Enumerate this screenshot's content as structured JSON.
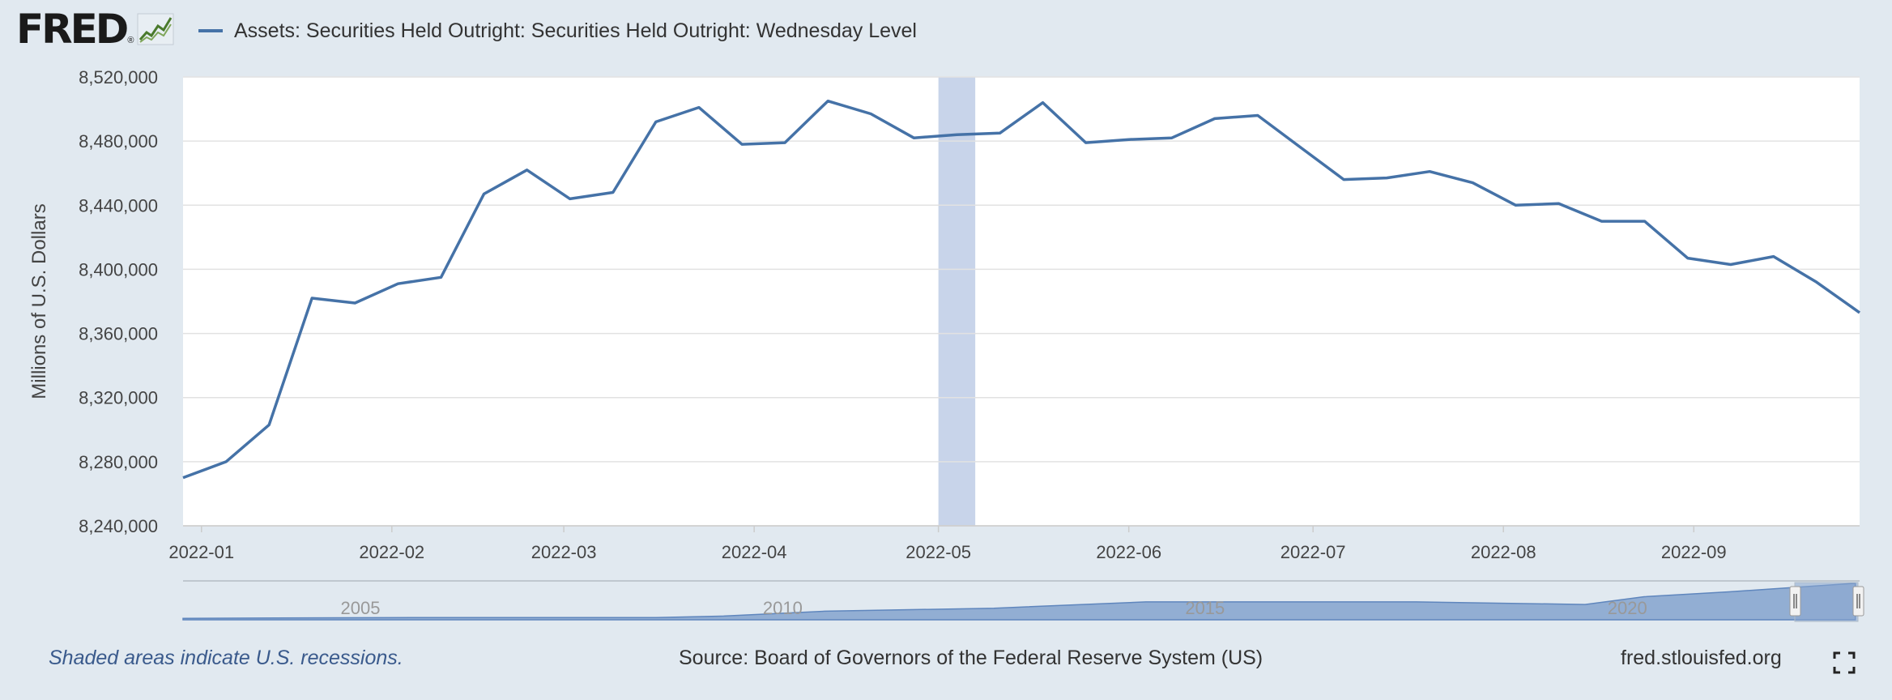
{
  "header": {
    "logo_text": "FRED",
    "logo_mark": "®",
    "series_title": "Assets: Securities Held Outright: Securities Held Outright: Wednesday Level"
  },
  "footer": {
    "recession_note": "Shaded areas indicate U.S. recessions.",
    "source": "Source: Board of Governors of the Federal Reserve System (US)",
    "site": "fred.stlouisfed.org"
  },
  "colors": {
    "series": "#4572a7",
    "shade": "#c8d4ea",
    "background": "#e1e9f0",
    "plot": "#ffffff",
    "navigator": "#8aa7cf"
  },
  "icons": {
    "fullscreen": "fullscreen-icon",
    "logo_graph": "line-graph-icon"
  },
  "chart_data": {
    "type": "line",
    "title": "",
    "xlabel": "",
    "ylabel": "Millions of U.S. Dollars",
    "ylim": [
      8240000,
      8520000
    ],
    "xlim": [
      "2021-12-29",
      "2022-09-28"
    ],
    "grid": true,
    "legend_placement": "top-left",
    "y_ticks": [
      {
        "value": 8240000,
        "label": "8,240,000"
      },
      {
        "value": 8280000,
        "label": "8,280,000"
      },
      {
        "value": 8320000,
        "label": "8,320,000"
      },
      {
        "value": 8360000,
        "label": "8,360,000"
      },
      {
        "value": 8400000,
        "label": "8,400,000"
      },
      {
        "value": 8440000,
        "label": "8,440,000"
      },
      {
        "value": 8480000,
        "label": "8,480,000"
      },
      {
        "value": 8520000,
        "label": "8,520,000"
      }
    ],
    "x_ticks": [
      {
        "date": "2022-01-01",
        "label": "2022-01"
      },
      {
        "date": "2022-02-01",
        "label": "2022-02"
      },
      {
        "date": "2022-03-01",
        "label": "2022-03"
      },
      {
        "date": "2022-04-01",
        "label": "2022-04"
      },
      {
        "date": "2022-05-01",
        "label": "2022-05"
      },
      {
        "date": "2022-06-01",
        "label": "2022-06"
      },
      {
        "date": "2022-07-01",
        "label": "2022-07"
      },
      {
        "date": "2022-08-01",
        "label": "2022-08"
      },
      {
        "date": "2022-09-01",
        "label": "2022-09"
      }
    ],
    "shaded_periods": [
      [
        "2022-05-01",
        "2022-05-07"
      ]
    ],
    "series": [
      {
        "name": "Assets: Securities Held Outright: Securities Held Outright: Wednesday Level",
        "x": [
          "2021-12-29",
          "2022-01-05",
          "2022-01-12",
          "2022-01-19",
          "2022-01-26",
          "2022-02-02",
          "2022-02-09",
          "2022-02-16",
          "2022-02-23",
          "2022-03-02",
          "2022-03-09",
          "2022-03-16",
          "2022-03-23",
          "2022-03-30",
          "2022-04-06",
          "2022-04-13",
          "2022-04-20",
          "2022-04-27",
          "2022-05-04",
          "2022-05-11",
          "2022-05-18",
          "2022-05-25",
          "2022-06-01",
          "2022-06-08",
          "2022-06-15",
          "2022-06-22",
          "2022-06-29",
          "2022-07-06",
          "2022-07-13",
          "2022-07-20",
          "2022-07-27",
          "2022-08-03",
          "2022-08-10",
          "2022-08-17",
          "2022-08-24",
          "2022-08-31",
          "2022-09-07",
          "2022-09-14",
          "2022-09-21",
          "2022-09-28"
        ],
        "values": [
          8270000,
          8280000,
          8303000,
          8382000,
          8379000,
          8391000,
          8395000,
          8447000,
          8462000,
          8444000,
          8448000,
          8492000,
          8501000,
          8478000,
          8479000,
          8505000,
          8497000,
          8482000,
          8484000,
          8485000,
          8504000,
          8479000,
          8481000,
          8482000,
          8494000,
          8496000,
          8476000,
          8456000,
          8457000,
          8461000,
          8454000,
          8440000,
          8441000,
          8430000,
          8430000,
          8407000,
          8403000,
          8408000,
          8392000,
          8373000
        ]
      }
    ],
    "navigator": {
      "tick_labels": [
        "2005",
        "2010",
        "2015",
        "2020"
      ],
      "series": [
        {
          "x": [
            2002.9,
            2004,
            2006,
            2008.5,
            2009.3,
            2010.5,
            2012.5,
            2014.3,
            2017.5,
            2019.5,
            2020.2,
            2021.2,
            2022.7
          ],
          "values": [
            0.04,
            0.05,
            0.06,
            0.06,
            0.1,
            0.23,
            0.31,
            0.48,
            0.48,
            0.41,
            0.62,
            0.75,
            0.98
          ]
        }
      ]
    }
  }
}
